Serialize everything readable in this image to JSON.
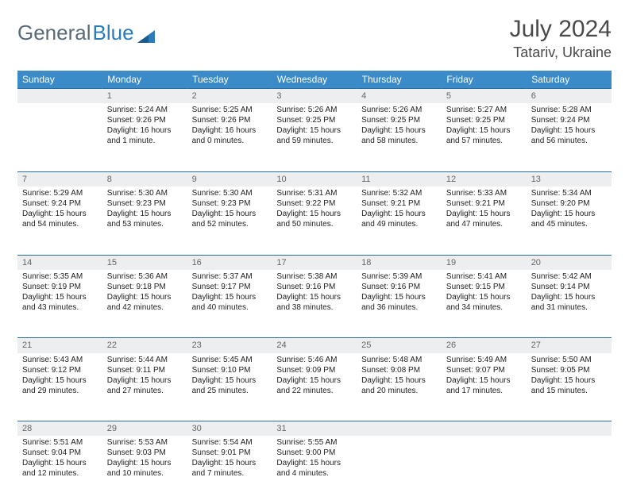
{
  "logo": {
    "part1": "General",
    "part2": "Blue"
  },
  "title": "July 2024",
  "location": "Tatariv, Ukraine",
  "colors": {
    "header_bg": "#3b8bc8",
    "header_text": "#ffffff",
    "daynum_bg": "#eceeef",
    "daynum_text": "#666666",
    "row_border": "#2b6ca0",
    "text": "#222222",
    "logo_gray": "#5a6a78",
    "logo_blue": "#2b7bbd"
  },
  "weekdays": [
    "Sunday",
    "Monday",
    "Tuesday",
    "Wednesday",
    "Thursday",
    "Friday",
    "Saturday"
  ],
  "weeks": [
    {
      "nums": [
        "",
        "1",
        "2",
        "3",
        "4",
        "5",
        "6"
      ],
      "cells": [
        null,
        {
          "sunrise": "Sunrise: 5:24 AM",
          "sunset": "Sunset: 9:26 PM",
          "daylight": "Daylight: 16 hours and 1 minute."
        },
        {
          "sunrise": "Sunrise: 5:25 AM",
          "sunset": "Sunset: 9:26 PM",
          "daylight": "Daylight: 16 hours and 0 minutes."
        },
        {
          "sunrise": "Sunrise: 5:26 AM",
          "sunset": "Sunset: 9:25 PM",
          "daylight": "Daylight: 15 hours and 59 minutes."
        },
        {
          "sunrise": "Sunrise: 5:26 AM",
          "sunset": "Sunset: 9:25 PM",
          "daylight": "Daylight: 15 hours and 58 minutes."
        },
        {
          "sunrise": "Sunrise: 5:27 AM",
          "sunset": "Sunset: 9:25 PM",
          "daylight": "Daylight: 15 hours and 57 minutes."
        },
        {
          "sunrise": "Sunrise: 5:28 AM",
          "sunset": "Sunset: 9:24 PM",
          "daylight": "Daylight: 15 hours and 56 minutes."
        }
      ]
    },
    {
      "nums": [
        "7",
        "8",
        "9",
        "10",
        "11",
        "12",
        "13"
      ],
      "cells": [
        {
          "sunrise": "Sunrise: 5:29 AM",
          "sunset": "Sunset: 9:24 PM",
          "daylight": "Daylight: 15 hours and 54 minutes."
        },
        {
          "sunrise": "Sunrise: 5:30 AM",
          "sunset": "Sunset: 9:23 PM",
          "daylight": "Daylight: 15 hours and 53 minutes."
        },
        {
          "sunrise": "Sunrise: 5:30 AM",
          "sunset": "Sunset: 9:23 PM",
          "daylight": "Daylight: 15 hours and 52 minutes."
        },
        {
          "sunrise": "Sunrise: 5:31 AM",
          "sunset": "Sunset: 9:22 PM",
          "daylight": "Daylight: 15 hours and 50 minutes."
        },
        {
          "sunrise": "Sunrise: 5:32 AM",
          "sunset": "Sunset: 9:21 PM",
          "daylight": "Daylight: 15 hours and 49 minutes."
        },
        {
          "sunrise": "Sunrise: 5:33 AM",
          "sunset": "Sunset: 9:21 PM",
          "daylight": "Daylight: 15 hours and 47 minutes."
        },
        {
          "sunrise": "Sunrise: 5:34 AM",
          "sunset": "Sunset: 9:20 PM",
          "daylight": "Daylight: 15 hours and 45 minutes."
        }
      ]
    },
    {
      "nums": [
        "14",
        "15",
        "16",
        "17",
        "18",
        "19",
        "20"
      ],
      "cells": [
        {
          "sunrise": "Sunrise: 5:35 AM",
          "sunset": "Sunset: 9:19 PM",
          "daylight": "Daylight: 15 hours and 43 minutes."
        },
        {
          "sunrise": "Sunrise: 5:36 AM",
          "sunset": "Sunset: 9:18 PM",
          "daylight": "Daylight: 15 hours and 42 minutes."
        },
        {
          "sunrise": "Sunrise: 5:37 AM",
          "sunset": "Sunset: 9:17 PM",
          "daylight": "Daylight: 15 hours and 40 minutes."
        },
        {
          "sunrise": "Sunrise: 5:38 AM",
          "sunset": "Sunset: 9:16 PM",
          "daylight": "Daylight: 15 hours and 38 minutes."
        },
        {
          "sunrise": "Sunrise: 5:39 AM",
          "sunset": "Sunset: 9:16 PM",
          "daylight": "Daylight: 15 hours and 36 minutes."
        },
        {
          "sunrise": "Sunrise: 5:41 AM",
          "sunset": "Sunset: 9:15 PM",
          "daylight": "Daylight: 15 hours and 34 minutes."
        },
        {
          "sunrise": "Sunrise: 5:42 AM",
          "sunset": "Sunset: 9:14 PM",
          "daylight": "Daylight: 15 hours and 31 minutes."
        }
      ]
    },
    {
      "nums": [
        "21",
        "22",
        "23",
        "24",
        "25",
        "26",
        "27"
      ],
      "cells": [
        {
          "sunrise": "Sunrise: 5:43 AM",
          "sunset": "Sunset: 9:12 PM",
          "daylight": "Daylight: 15 hours and 29 minutes."
        },
        {
          "sunrise": "Sunrise: 5:44 AM",
          "sunset": "Sunset: 9:11 PM",
          "daylight": "Daylight: 15 hours and 27 minutes."
        },
        {
          "sunrise": "Sunrise: 5:45 AM",
          "sunset": "Sunset: 9:10 PM",
          "daylight": "Daylight: 15 hours and 25 minutes."
        },
        {
          "sunrise": "Sunrise: 5:46 AM",
          "sunset": "Sunset: 9:09 PM",
          "daylight": "Daylight: 15 hours and 22 minutes."
        },
        {
          "sunrise": "Sunrise: 5:48 AM",
          "sunset": "Sunset: 9:08 PM",
          "daylight": "Daylight: 15 hours and 20 minutes."
        },
        {
          "sunrise": "Sunrise: 5:49 AM",
          "sunset": "Sunset: 9:07 PM",
          "daylight": "Daylight: 15 hours and 17 minutes."
        },
        {
          "sunrise": "Sunrise: 5:50 AM",
          "sunset": "Sunset: 9:05 PM",
          "daylight": "Daylight: 15 hours and 15 minutes."
        }
      ]
    },
    {
      "nums": [
        "28",
        "29",
        "30",
        "31",
        "",
        "",
        ""
      ],
      "cells": [
        {
          "sunrise": "Sunrise: 5:51 AM",
          "sunset": "Sunset: 9:04 PM",
          "daylight": "Daylight: 15 hours and 12 minutes."
        },
        {
          "sunrise": "Sunrise: 5:53 AM",
          "sunset": "Sunset: 9:03 PM",
          "daylight": "Daylight: 15 hours and 10 minutes."
        },
        {
          "sunrise": "Sunrise: 5:54 AM",
          "sunset": "Sunset: 9:01 PM",
          "daylight": "Daylight: 15 hours and 7 minutes."
        },
        {
          "sunrise": "Sunrise: 5:55 AM",
          "sunset": "Sunset: 9:00 PM",
          "daylight": "Daylight: 15 hours and 4 minutes."
        },
        null,
        null,
        null
      ]
    }
  ]
}
